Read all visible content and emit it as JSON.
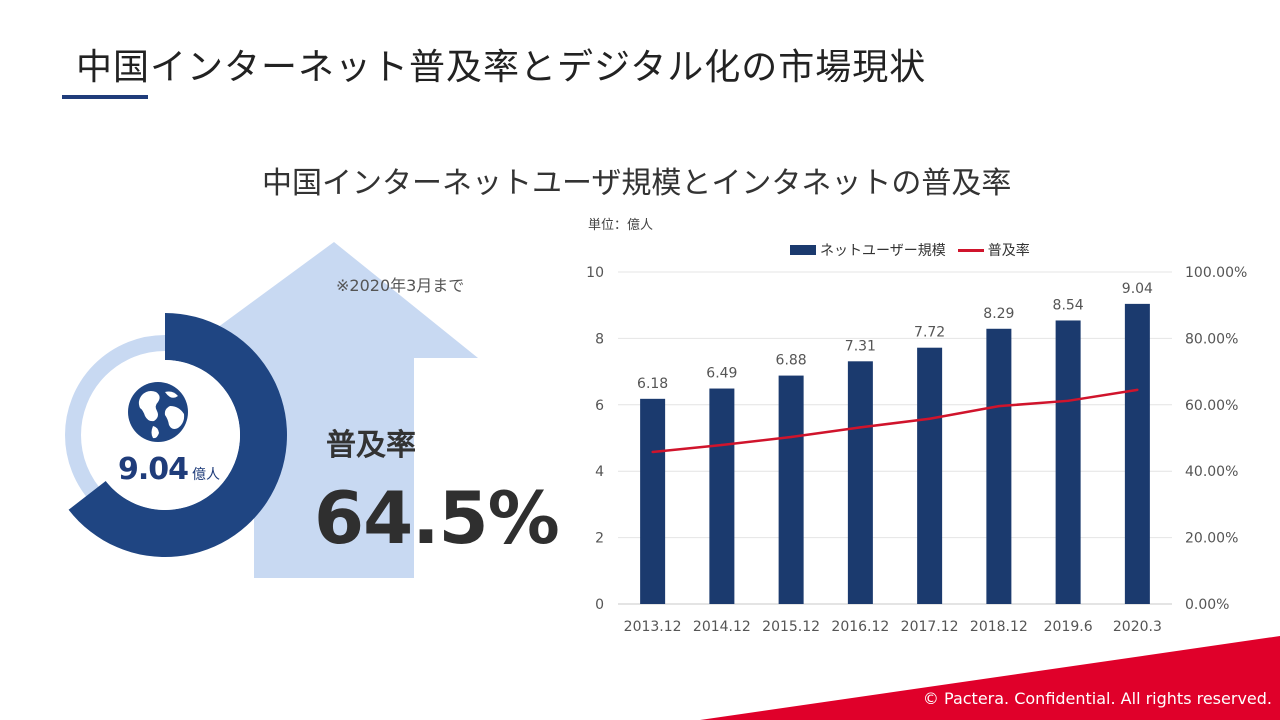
{
  "page": {
    "title": "中国インターネット普及率とデジタル化の市場現状",
    "footer": "© Pactera.  Confidential.  All rights reserved."
  },
  "left_panel": {
    "note": "※2020年3月まで",
    "rate_label": "普及率",
    "rate_value": "64.5%",
    "users_value": "9.04",
    "users_unit": "億人",
    "donut_fill_fraction": 0.645,
    "colors": {
      "dark": "#1f4582",
      "light": "#c8d9f2"
    }
  },
  "chart_data": {
    "type": "bar",
    "title": "中国インターネットユーザ規模とインタネットの普及率",
    "unit_label": "単位：億人",
    "categories": [
      "2013.12",
      "2014.12",
      "2015.12",
      "2016.12",
      "2017.12",
      "2018.12",
      "2019.6",
      "2020.3"
    ],
    "series": [
      {
        "name": "ネットユーザー規模",
        "type": "bar",
        "axis": "left",
        "color": "#1b3a6e",
        "values": [
          6.18,
          6.49,
          6.88,
          7.31,
          7.72,
          8.29,
          8.54,
          9.04
        ]
      },
      {
        "name": "普及率",
        "type": "line",
        "axis": "right",
        "color": "#d0142c",
        "values": [
          45.8,
          47.9,
          50.3,
          53.2,
          55.8,
          59.6,
          61.2,
          64.5
        ]
      }
    ],
    "ylim_left": [
      0,
      10
    ],
    "yticks_left": [
      "0",
      "2",
      "4",
      "6",
      "8",
      "10"
    ],
    "ylim_right": [
      0,
      100
    ],
    "yticks_right": [
      "0.00%",
      "20.00%",
      "40.00%",
      "60.00%",
      "80.00%",
      "100.00%"
    ],
    "grid": true,
    "legend": "top"
  }
}
